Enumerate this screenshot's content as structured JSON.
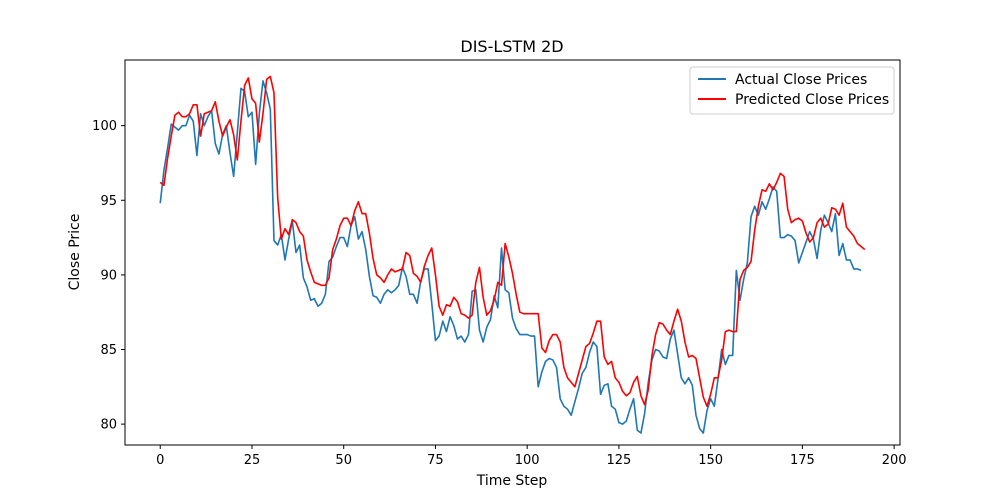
{
  "chart_data": {
    "type": "line",
    "title": "DIS-LSTM 2D",
    "xlabel": "Time Step",
    "ylabel": "Close Price",
    "xlim": [
      -9.6,
      201.6
    ],
    "ylim": [
      78.6,
      104.4
    ],
    "xticks": [
      0,
      25,
      50,
      75,
      100,
      125,
      150,
      175,
      200
    ],
    "yticks": [
      80,
      85,
      90,
      95,
      100
    ],
    "grid": false,
    "legend_position": "top-right",
    "series": [
      {
        "name": "Actual Close Prices",
        "color": "#1f77b4",
        "values": [
          94.8,
          97.0,
          98.5,
          100.1,
          99.9,
          99.7,
          100.0,
          100.0,
          100.7,
          100.3,
          98.0,
          100.8,
          100.0,
          100.6,
          101.0,
          98.8,
          98.1,
          99.4,
          100.0,
          98.2,
          96.6,
          99.5,
          102.5,
          102.3,
          100.6,
          100.9,
          97.4,
          100.8,
          103.0,
          102.2,
          101.1,
          92.3,
          92.0,
          92.7,
          91.0,
          92.4,
          93.6,
          91.5,
          92.0,
          89.8,
          89.2,
          88.3,
          88.4,
          87.9,
          88.1,
          88.7,
          90.9,
          91.2,
          91.9,
          92.5,
          92.5,
          91.9,
          93.3,
          93.9,
          92.4,
          92.9,
          91.7,
          89.9,
          88.6,
          88.5,
          88.1,
          88.7,
          89.0,
          88.8,
          89.0,
          89.3,
          90.5,
          89.9,
          88.7,
          88.7,
          88.1,
          89.6,
          90.4,
          90.4,
          88.1,
          85.6,
          85.9,
          86.9,
          86.2,
          87.2,
          86.6,
          85.7,
          85.9,
          85.5,
          86.0,
          88.9,
          89.0,
          86.3,
          85.5,
          86.5,
          87.0,
          88.6,
          87.8,
          91.8,
          89.0,
          88.8,
          87.1,
          86.4,
          86.0,
          86.0,
          86.0,
          85.9,
          85.9,
          82.5,
          83.5,
          84.2,
          84.4,
          84.3,
          83.8,
          81.7,
          81.2,
          81.0,
          80.6,
          81.5,
          82.4,
          83.4,
          83.8,
          84.8,
          85.5,
          85.2,
          82.0,
          82.6,
          82.7,
          81.2,
          81.0,
          80.1,
          80.0,
          80.2,
          81.0,
          81.7,
          79.6,
          79.4,
          80.7,
          82.8,
          84.3,
          85.0,
          84.9,
          84.5,
          84.4,
          85.7,
          86.3,
          84.7,
          83.1,
          82.7,
          83.1,
          82.6,
          80.6,
          79.7,
          79.4,
          80.9,
          81.7,
          81.2,
          83.0,
          85.0,
          84.0,
          84.6,
          84.6,
          90.3,
          88.3,
          89.7,
          90.8,
          93.9,
          94.6,
          94.0,
          94.9,
          94.4,
          95.1,
          95.9,
          95.6,
          92.5,
          92.5,
          92.7,
          92.6,
          92.3,
          90.8,
          91.5,
          92.2,
          92.9,
          92.4,
          91.1,
          93.0,
          94.0,
          93.5,
          92.9,
          94.1,
          91.3,
          92.1,
          91.0,
          91.0,
          90.4,
          90.4,
          90.3
        ]
      },
      {
        "name": "Predicted Close Prices",
        "color": "#ff0000",
        "values": [
          96.2,
          96.0,
          97.8,
          99.3,
          100.7,
          100.9,
          100.6,
          100.6,
          100.8,
          101.4,
          101.4,
          99.3,
          100.8,
          100.9,
          101.0,
          101.6,
          100.3,
          99.3,
          99.9,
          100.4,
          99.4,
          97.7,
          100.3,
          102.7,
          103.2,
          101.8,
          101.5,
          98.9,
          100.8,
          103.1,
          103.3,
          102.2,
          95.2,
          92.4,
          93.1,
          92.7,
          93.7,
          93.5,
          92.9,
          92.6,
          91.0,
          90.2,
          89.5,
          89.4,
          89.3,
          89.3,
          89.8,
          91.7,
          92.4,
          93.3,
          93.8,
          93.8,
          93.3,
          94.3,
          94.9,
          94.1,
          94.1,
          92.8,
          91.1,
          90.0,
          89.8,
          89.5,
          90.0,
          90.4,
          90.2,
          90.3,
          90.4,
          91.5,
          91.3,
          90.1,
          89.9,
          89.5,
          90.6,
          91.3,
          91.8,
          90.0,
          87.9,
          87.3,
          88.0,
          87.9,
          88.5,
          88.2,
          87.4,
          87.3,
          87.1,
          87.3,
          89.5,
          90.5,
          88.5,
          87.3,
          87.6,
          88.3,
          89.5,
          89.3,
          92.1,
          91.2,
          90.1,
          88.7,
          87.5,
          87.4,
          87.4,
          87.4,
          87.4,
          87.4,
          85.1,
          84.8,
          85.6,
          86.0,
          86.0,
          85.5,
          83.8,
          83.1,
          82.8,
          82.5,
          83.4,
          84.3,
          85.2,
          85.4,
          86.1,
          86.9,
          86.9,
          84.5,
          84.0,
          84.2,
          83.1,
          82.8,
          82.2,
          81.9,
          82.1,
          82.8,
          83.2,
          81.9,
          81.3,
          82.3,
          84.6,
          86.0,
          86.8,
          86.7,
          86.3,
          86.0,
          86.9,
          87.7,
          86.9,
          85.5,
          84.5,
          84.6,
          84.4,
          83.1,
          81.8,
          81.2,
          82.0,
          83.1,
          83.1,
          84.3,
          86.2,
          86.3,
          86.2,
          86.2,
          89.7,
          90.3,
          90.5,
          90.9,
          93.0,
          94.6,
          95.7,
          95.6,
          96.1,
          95.7,
          96.2,
          96.8,
          96.6,
          94.4,
          93.5,
          93.7,
          93.8,
          93.6,
          92.8,
          92.2,
          92.5,
          93.5,
          93.8,
          93.2,
          93.4,
          94.5,
          94.4,
          94.0,
          94.8,
          93.2,
          92.9,
          92.6,
          92.1,
          91.9,
          91.7
        ]
      }
    ]
  }
}
